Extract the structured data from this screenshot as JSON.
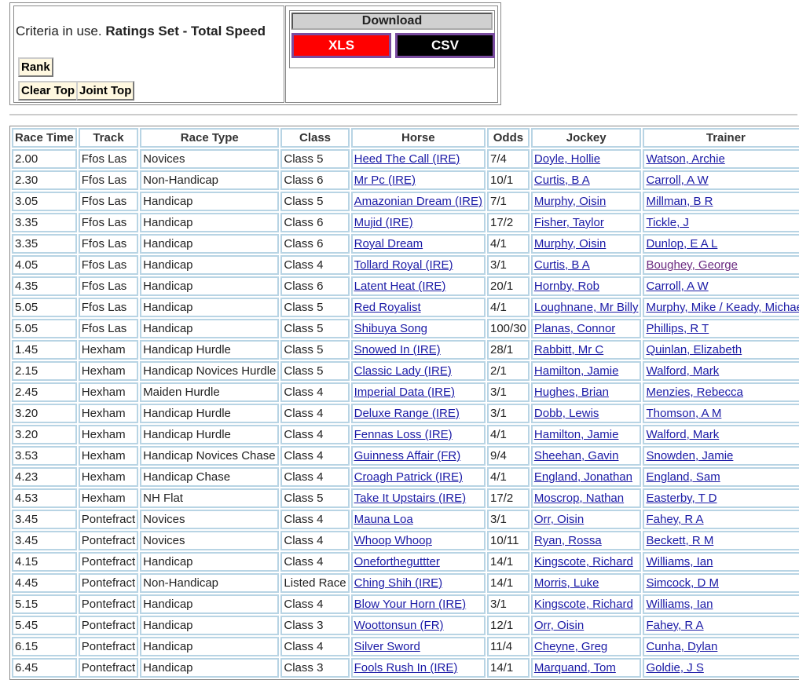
{
  "criteria": {
    "prefix": "Criteria in use.",
    "value": "Ratings Set - Total Speed"
  },
  "buttons": {
    "rank": "Rank",
    "clear_top": "Clear Top",
    "joint_top": "Joint Top"
  },
  "download": {
    "title": "Download",
    "xls": "XLS",
    "csv": "CSV",
    "xls_color": "#ff0000",
    "csv_color": "#000000"
  },
  "table": {
    "headers": [
      "Race Time",
      "Track",
      "Race Type",
      "Class",
      "Horse",
      "Odds",
      "Jockey",
      "Trainer"
    ],
    "rows": [
      [
        "2.00",
        "Ffos Las",
        "Novices",
        "Class 5",
        "Heed The Call (IRE)",
        "7/4",
        "Doyle, Hollie",
        "Watson, Archie"
      ],
      [
        "2.30",
        "Ffos Las",
        "Non-Handicap",
        "Class 6",
        "Mr Pc (IRE)",
        "10/1",
        "Curtis, B A",
        "Carroll, A W"
      ],
      [
        "3.05",
        "Ffos Las",
        "Handicap",
        "Class 5",
        "Amazonian Dream (IRE)",
        "7/1",
        "Murphy, Oisin",
        "Millman, B R"
      ],
      [
        "3.35",
        "Ffos Las",
        "Handicap",
        "Class 6",
        "Mujid (IRE)",
        "17/2",
        "Fisher, Taylor",
        "Tickle, J"
      ],
      [
        "3.35",
        "Ffos Las",
        "Handicap",
        "Class 6",
        "Royal Dream",
        "4/1",
        "Murphy, Oisin",
        "Dunlop, E A L"
      ],
      [
        "4.05",
        "Ffos Las",
        "Handicap",
        "Class 4",
        "Tollard Royal (IRE)",
        "3/1",
        "Curtis, B A",
        "Boughey, George"
      ],
      [
        "4.35",
        "Ffos Las",
        "Handicap",
        "Class 6",
        "Latent Heat (IRE)",
        "20/1",
        "Hornby, Rob",
        "Carroll, A W"
      ],
      [
        "5.05",
        "Ffos Las",
        "Handicap",
        "Class 5",
        "Red Royalist",
        "4/1",
        "Loughnane, Mr Billy",
        "Murphy, Mike / Keady, Michael"
      ],
      [
        "5.05",
        "Ffos Las",
        "Handicap",
        "Class 5",
        "Shibuya Song",
        "100/30",
        "Planas, Connor",
        "Phillips, R T"
      ],
      [
        "1.45",
        "Hexham",
        "Handicap Hurdle",
        "Class 5",
        "Snowed In (IRE)",
        "28/1",
        "Rabbitt, Mr C",
        "Quinlan, Elizabeth"
      ],
      [
        "2.15",
        "Hexham",
        "Handicap Novices Hurdle",
        "Class 5",
        "Classic Lady (IRE)",
        "2/1",
        "Hamilton, Jamie",
        "Walford, Mark"
      ],
      [
        "2.45",
        "Hexham",
        "Maiden Hurdle",
        "Class 4",
        "Imperial Data (IRE)",
        "3/1",
        "Hughes, Brian",
        "Menzies, Rebecca"
      ],
      [
        "3.20",
        "Hexham",
        "Handicap Hurdle",
        "Class 4",
        "Deluxe Range (IRE)",
        "3/1",
        "Dobb, Lewis",
        "Thomson, A M"
      ],
      [
        "3.20",
        "Hexham",
        "Handicap Hurdle",
        "Class 4",
        "Fennas Loss (IRE)",
        "4/1",
        "Hamilton, Jamie",
        "Walford, Mark"
      ],
      [
        "3.53",
        "Hexham",
        "Handicap Novices Chase",
        "Class 4",
        "Guinness Affair (FR)",
        "9/4",
        "Sheehan, Gavin",
        "Snowden, Jamie"
      ],
      [
        "4.23",
        "Hexham",
        "Handicap Chase",
        "Class 4",
        "Croagh Patrick (IRE)",
        "4/1",
        "England, Jonathan",
        "England, Sam"
      ],
      [
        "4.53",
        "Hexham",
        "NH Flat",
        "Class 5",
        "Take It Upstairs (IRE)",
        "17/2",
        "Moscrop, Nathan",
        "Easterby, T D"
      ],
      [
        "3.45",
        "Pontefract",
        "Novices",
        "Class 4",
        "Mauna Loa",
        "3/1",
        "Orr, Oisin",
        "Fahey, R A"
      ],
      [
        "3.45",
        "Pontefract",
        "Novices",
        "Class 4",
        "Whoop Whoop",
        "10/11",
        "Ryan, Rossa",
        "Beckett, R M"
      ],
      [
        "4.15",
        "Pontefract",
        "Handicap",
        "Class 4",
        "Onefortheguttter",
        "14/1",
        "Kingscote, Richard",
        "Williams, Ian"
      ],
      [
        "4.45",
        "Pontefract",
        "Non-Handicap",
        "Listed Race",
        "Ching Shih (IRE)",
        "14/1",
        "Morris, Luke",
        "Simcock, D M"
      ],
      [
        "5.15",
        "Pontefract",
        "Handicap",
        "Class 4",
        "Blow Your Horn (IRE)",
        "3/1",
        "Kingscote, Richard",
        "Williams, Ian"
      ],
      [
        "5.45",
        "Pontefract",
        "Handicap",
        "Class 3",
        "Woottonsun (FR)",
        "12/1",
        "Orr, Oisin",
        "Fahey, R A"
      ],
      [
        "6.15",
        "Pontefract",
        "Handicap",
        "Class 4",
        "Silver Sword",
        "11/4",
        "Cheyne, Greg",
        "Cunha, Dylan"
      ],
      [
        "6.45",
        "Pontefract",
        "Handicap",
        "Class 3",
        "Fools Rush In (IRE)",
        "14/1",
        "Marquand, Tom",
        "Goldie, J S"
      ]
    ],
    "visited_trainers": [
      "Boughey, George"
    ]
  }
}
